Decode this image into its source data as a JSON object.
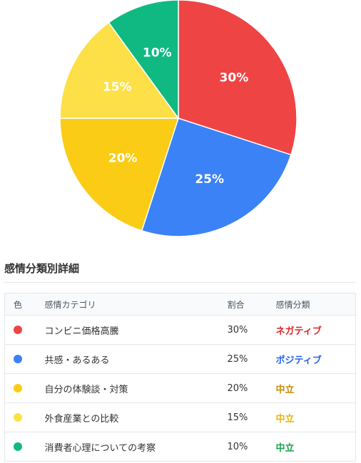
{
  "chart_data": {
    "type": "pie",
    "slices": [
      {
        "label": "コンビニ価格高騰",
        "value": 30,
        "color": "#ef4444",
        "value_label": "30%"
      },
      {
        "label": "共感・あるある",
        "value": 25,
        "color": "#3b82f6",
        "value_label": "25%"
      },
      {
        "label": "自分の体験談・対策",
        "value": 20,
        "color": "#facc15",
        "value_label": "20%"
      },
      {
        "label": "外食産業との比較",
        "value": 15,
        "color": "#fde047",
        "value_label": "15%"
      },
      {
        "label": "消費者心理についての考察",
        "value": 10,
        "color": "#10b981",
        "value_label": "10%"
      }
    ]
  },
  "section": {
    "title": "感情分類別詳細"
  },
  "table": {
    "headers": {
      "color": "色",
      "category": "感情カテゴリ",
      "ratio": "割合",
      "sentiment": "感情分類"
    },
    "rows": [
      {
        "color": "#ef4444",
        "category": "コンビニ価格高騰",
        "ratio": "30%",
        "sentiment": "ネガティブ",
        "sentiment_color": "#dc2626"
      },
      {
        "color": "#3b82f6",
        "category": "共感・あるある",
        "ratio": "25%",
        "sentiment": "ポジティブ",
        "sentiment_color": "#2563eb"
      },
      {
        "color": "#facc15",
        "category": "自分の体験談・対策",
        "ratio": "20%",
        "sentiment": "中立",
        "sentiment_color": "#ca8a04"
      },
      {
        "color": "#fde047",
        "category": "外食産業との比較",
        "ratio": "15%",
        "sentiment": "中立",
        "sentiment_color": "#eab308"
      },
      {
        "color": "#10b981",
        "category": "消費者心理についての考察",
        "ratio": "10%",
        "sentiment": "中立",
        "sentiment_color": "#16a34a"
      }
    ]
  }
}
